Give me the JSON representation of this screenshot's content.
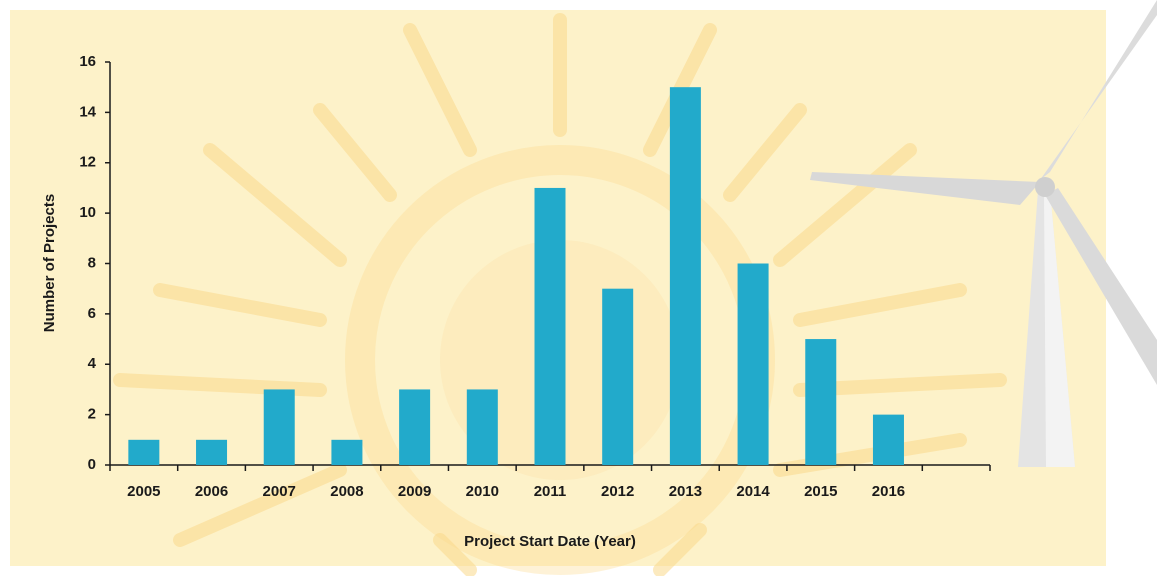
{
  "chart_data": {
    "type": "bar",
    "x_label": "Project Start Date (Year)",
    "y_label": "Number of Projects",
    "categories": [
      "2005",
      "2006",
      "2007",
      "2008",
      "2009",
      "2010",
      "2011",
      "2012",
      "2013",
      "2014",
      "2015",
      "2016",
      null
    ],
    "values": [
      1,
      1,
      3,
      1,
      3,
      3,
      11,
      7,
      15,
      8,
      5,
      2,
      null
    ],
    "color": "#22aacb",
    "ylim": [
      0,
      16
    ],
    "yticks": [
      0,
      2,
      4,
      6,
      8,
      10,
      12,
      14,
      16
    ],
    "grid": false
  }
}
